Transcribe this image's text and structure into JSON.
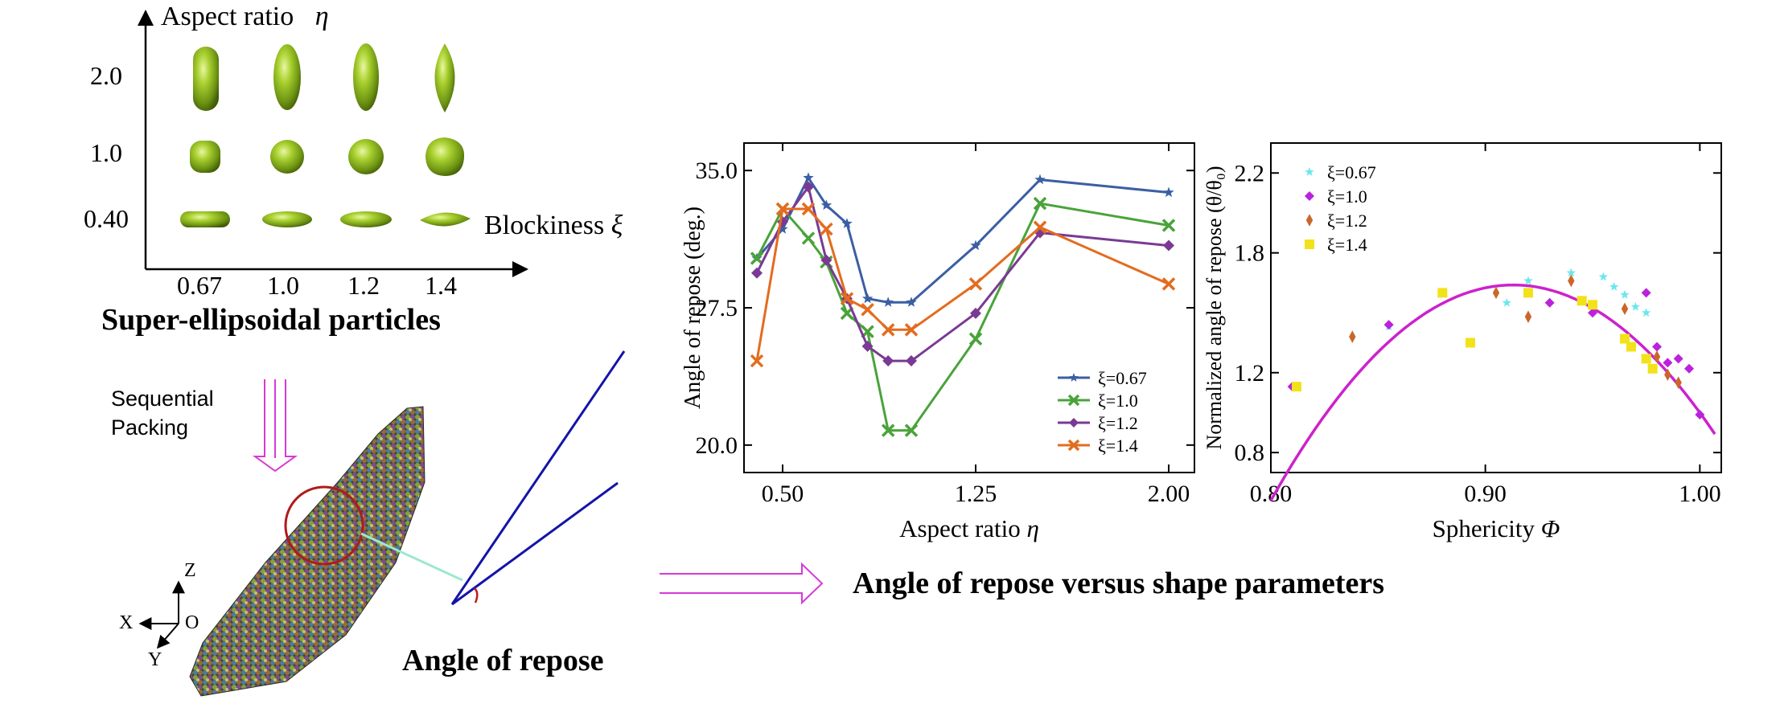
{
  "shape_panel": {
    "y_axis_label": "Aspect ratio",
    "y_axis_symbol": "η",
    "x_axis_label": "Blockiness",
    "x_axis_symbol": "ξ",
    "row_labels": [
      "2.0",
      "1.0",
      "0.40"
    ],
    "col_labels": [
      "0.67",
      "1.0",
      "1.2",
      "1.4"
    ],
    "caption": "Super-ellipsoidal particles",
    "particle_color": "#8db82a"
  },
  "flow": {
    "sequential_label": "Sequential\nPacking",
    "sequential_line1": "Sequential",
    "sequential_line2": "Packing",
    "repose_caption": "Angle of repose",
    "result_caption": "Angle of repose versus shape parameters",
    "arrow_color": "#d63ad6"
  },
  "axes_triad": {
    "z": "Z",
    "x": "X",
    "y": "Y",
    "o": "O"
  },
  "chart_data": [
    {
      "type": "line",
      "title": "",
      "xlabel": "Aspect ratio",
      "xlabel_symbol": "η",
      "ylabel": "Angle of repose (deg.)",
      "xlim": [
        0.35,
        2.1
      ],
      "ylim": [
        18.5,
        36.5
      ],
      "x_ticks": [
        "0.50",
        "1.25",
        "2.00"
      ],
      "y_ticks": [
        "20.0",
        "27.5",
        "35.0"
      ],
      "x": [
        0.4,
        0.5,
        0.6,
        0.67,
        0.75,
        0.83,
        0.91,
        1.0,
        1.25,
        1.5,
        2.0
      ],
      "series": [
        {
          "name": "ξ=0.67",
          "color": "#3b5fa3",
          "marker": "star",
          "values": [
            30.2,
            31.8,
            34.6,
            33.1,
            32.1,
            28.0,
            27.8,
            27.8,
            30.9,
            34.5,
            33.8
          ]
        },
        {
          "name": "ξ=1.0",
          "color": "#4aa33a",
          "marker": "x",
          "values": [
            30.2,
            32.9,
            31.3,
            30.0,
            27.2,
            26.2,
            20.8,
            20.8,
            25.8,
            33.2,
            32.0
          ]
        },
        {
          "name": "ξ=1.2",
          "color": "#7a3a93",
          "marker": "plus",
          "values": [
            29.4,
            32.2,
            34.1,
            30.1,
            28.0,
            25.4,
            24.6,
            24.6,
            27.2,
            31.6,
            30.9
          ]
        },
        {
          "name": "ξ=1.4",
          "color": "#e36c1f",
          "marker": "x",
          "values": [
            24.6,
            32.9,
            32.9,
            31.8,
            28.0,
            27.4,
            26.3,
            26.3,
            28.8,
            31.9,
            28.8
          ]
        }
      ],
      "legend": "bottom-right"
    },
    {
      "type": "scatter",
      "title": "",
      "xlabel": "Sphericity",
      "xlabel_symbol": "Φ",
      "ylabel": "Normalized angle of repose (θ/θ₀)",
      "xlim": [
        0.8,
        1.01
      ],
      "ylim": [
        0.7,
        2.35
      ],
      "x_ticks": [
        "0.80",
        "0.90",
        "1.00"
      ],
      "y_ticks": [
        "0.8",
        "1.2",
        "1.8",
        "2.2"
      ],
      "series": [
        {
          "name": "ξ=0.67",
          "color": "#6ee6ee",
          "marker": "star",
          "points": [
            [
              0.855,
              1.43
            ],
            [
              0.91,
              1.55
            ],
            [
              0.92,
              1.66
            ],
            [
              0.94,
              1.7
            ],
            [
              0.955,
              1.68
            ],
            [
              0.96,
              1.63
            ],
            [
              0.965,
              1.59
            ],
            [
              0.97,
              1.53
            ],
            [
              0.975,
              1.5
            ]
          ]
        },
        {
          "name": "ξ=1.0",
          "color": "#bb22dd",
          "marker": "plus",
          "points": [
            [
              0.81,
              1.13
            ],
            [
              0.855,
              1.44
            ],
            [
              0.93,
              1.55
            ],
            [
              0.95,
              1.5
            ],
            [
              0.975,
              1.6
            ],
            [
              0.98,
              1.33
            ],
            [
              0.985,
              1.25
            ],
            [
              0.99,
              1.27
            ],
            [
              0.995,
              1.22
            ],
            [
              1.0,
              0.99
            ]
          ]
        },
        {
          "name": "ξ=1.2",
          "color": "#c9672a",
          "marker": "diamond",
          "points": [
            [
              0.838,
              1.38
            ],
            [
              0.905,
              1.6
            ],
            [
              0.92,
              1.48
            ],
            [
              0.94,
              1.66
            ],
            [
              0.965,
              1.52
            ],
            [
              0.98,
              1.28
            ],
            [
              0.985,
              1.19
            ],
            [
              0.99,
              1.15
            ]
          ]
        },
        {
          "name": "ξ=1.4",
          "color": "#f2e21a",
          "marker": "square",
          "points": [
            [
              0.812,
              1.13
            ],
            [
              0.88,
              1.6
            ],
            [
              0.893,
              1.35
            ],
            [
              0.92,
              1.6
            ],
            [
              0.945,
              1.56
            ],
            [
              0.95,
              1.54
            ],
            [
              0.965,
              1.37
            ],
            [
              0.968,
              1.33
            ],
            [
              0.975,
              1.27
            ],
            [
              0.978,
              1.22
            ]
          ]
        }
      ],
      "fit": {
        "color": "#cc22cc",
        "coefficients": [
          -84.5,
          154.3,
          -68.8
        ]
      },
      "legend": "top-left"
    }
  ]
}
